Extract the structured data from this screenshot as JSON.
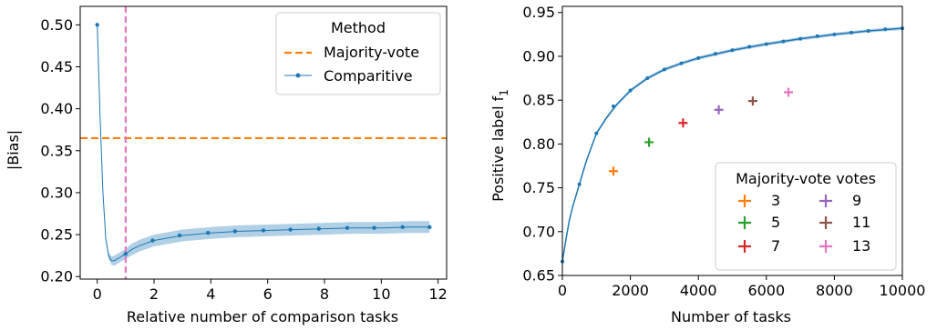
{
  "chart_data": [
    {
      "type": "line",
      "xlabel": "Relative number of comparison tasks",
      "ylabel": "|Bias|",
      "xlim": [
        -0.6,
        12.3
      ],
      "ylim": [
        0.197,
        0.522
      ],
      "xticks": [
        0,
        2,
        4,
        6,
        8,
        10,
        12
      ],
      "yticks": [
        0.2,
        0.25,
        0.3,
        0.35,
        0.4,
        0.45,
        0.5
      ],
      "ytick_labels": [
        "0.20",
        "0.25",
        "0.30",
        "0.35",
        "0.40",
        "0.45",
        "0.50"
      ],
      "legend": {
        "title": "Method",
        "position": "top-right"
      },
      "series": [
        {
          "name": "Majority-vote",
          "style": "dashed",
          "color": "#ff7f0e",
          "kind": "hline",
          "y": 0.365
        },
        {
          "name": "Comparitive",
          "style": "line-with-markers",
          "color": "#1f77b4",
          "band_color": "#1f77b4",
          "x": [
            0,
            0.1,
            0.2,
            0.3,
            0.4,
            0.5,
            0.6,
            0.7,
            0.8,
            0.9,
            1.0,
            1.2,
            1.5,
            2.0,
            2.5,
            3.0,
            4.0,
            5.0,
            6.0,
            7.0,
            8.0,
            9.0,
            10.0,
            11.0,
            11.7
          ],
          "values": [
            0.5,
            0.39,
            0.3,
            0.245,
            0.225,
            0.219,
            0.219,
            0.221,
            0.223,
            0.225,
            0.227,
            0.232,
            0.237,
            0.243,
            0.246,
            0.249,
            0.252,
            0.254,
            0.255,
            0.256,
            0.257,
            0.258,
            0.258,
            0.259,
            0.259
          ],
          "band": [
            0.0,
            0.0,
            0.002,
            0.003,
            0.004,
            0.005,
            0.006,
            0.006,
            0.006,
            0.006,
            0.006,
            0.007,
            0.007,
            0.007,
            0.007,
            0.007,
            0.007,
            0.007,
            0.007,
            0.007,
            0.007,
            0.007,
            0.007,
            0.007,
            0.007
          ],
          "marker_x": [
            0,
            1.0,
            1.95,
            2.9,
            3.9,
            4.85,
            5.85,
            6.8,
            7.8,
            8.8,
            9.75,
            10.75,
            11.7
          ],
          "marker_values": [
            0.5,
            0.227,
            0.243,
            0.249,
            0.252,
            0.254,
            0.255,
            0.256,
            0.257,
            0.258,
            0.258,
            0.259,
            0.259
          ]
        }
      ],
      "vline": {
        "x": 1.0,
        "color": "#e377c2",
        "style": "dashed"
      }
    },
    {
      "type": "line",
      "xlabel": "Number of tasks",
      "ylabel": "Positive label f",
      "ylabel_subscript": "1",
      "xlim": [
        0,
        10000
      ],
      "ylim": [
        0.65,
        0.957
      ],
      "xticks": [
        0,
        2000,
        4000,
        6000,
        8000,
        10000
      ],
      "yticks": [
        0.65,
        0.7,
        0.75,
        0.8,
        0.85,
        0.9,
        0.95
      ],
      "ytick_labels": [
        "0.65",
        "0.70",
        "0.75",
        "0.80",
        "0.85",
        "0.90",
        "0.95"
      ],
      "legend": {
        "title": "Majority-vote votes",
        "position": "bottom-right"
      },
      "curve": {
        "color": "#1f77b4",
        "x": [
          0,
          100,
          200,
          300,
          500,
          700,
          1000,
          1300,
          1600,
          2000,
          2500,
          3000,
          3500,
          4000,
          5000,
          6000,
          7000,
          8000,
          9000,
          10000
        ],
        "values": [
          0.666,
          0.69,
          0.712,
          0.728,
          0.754,
          0.78,
          0.812,
          0.83,
          0.845,
          0.861,
          0.875,
          0.885,
          0.892,
          0.898,
          0.907,
          0.914,
          0.92,
          0.925,
          0.929,
          0.932
        ],
        "band": 0.002,
        "marker_x": [
          0,
          500,
          1000,
          1500,
          2000,
          2500,
          3000,
          3500,
          4000,
          4500,
          5000,
          5500,
          6000,
          6500,
          7000,
          7500,
          8000,
          8500,
          9000,
          9500,
          10000
        ],
        "marker_values": [
          0.666,
          0.754,
          0.812,
          0.843,
          0.861,
          0.875,
          0.885,
          0.892,
          0.898,
          0.903,
          0.907,
          0.911,
          0.914,
          0.917,
          0.92,
          0.923,
          0.925,
          0.927,
          0.929,
          0.931,
          0.932
        ]
      },
      "series": [
        {
          "name": "3",
          "color": "#ff7f0e",
          "x": 1500,
          "y": 0.769
        },
        {
          "name": "5",
          "color": "#2ca02c",
          "x": 2550,
          "y": 0.802
        },
        {
          "name": "7",
          "color": "#d62728",
          "x": 3550,
          "y": 0.824
        },
        {
          "name": "9",
          "color": "#9467bd",
          "x": 4600,
          "y": 0.839
        },
        {
          "name": "11",
          "color": "#8c564b",
          "x": 5600,
          "y": 0.849
        },
        {
          "name": "13",
          "color": "#e377c2",
          "x": 6650,
          "y": 0.859
        }
      ]
    }
  ]
}
